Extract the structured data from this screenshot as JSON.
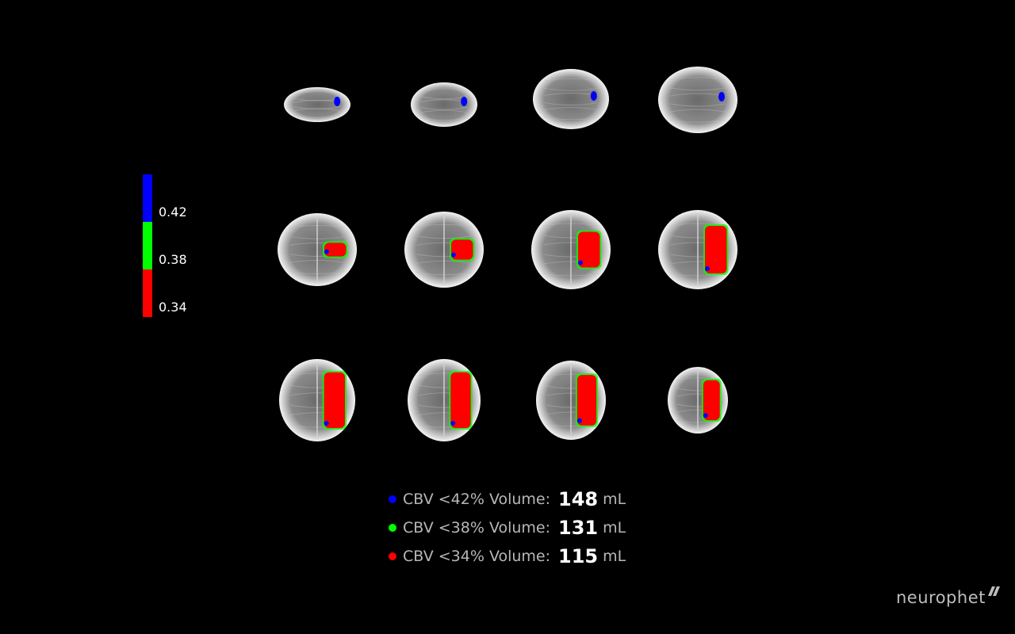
{
  "colorbar": {
    "segments": [
      {
        "color": "#0000ff",
        "label": "0.42"
      },
      {
        "color": "#00ff00",
        "label": "0.38"
      },
      {
        "color": "#ff0000",
        "label": "0.34"
      }
    ]
  },
  "slices": {
    "rows": 3,
    "cols": 4,
    "count": 12,
    "lesion_side": "right"
  },
  "legend": [
    {
      "color": "#0000ff",
      "label": "CBV <42% Volume:",
      "value": "148",
      "unit": "mL"
    },
    {
      "color": "#00ff00",
      "label": "CBV <38% Volume:",
      "value": "131",
      "unit": "mL"
    },
    {
      "color": "#ff0000",
      "label": "CBV <34% Volume:",
      "value": "115",
      "unit": "mL"
    }
  ],
  "brand": {
    "name": "neurophet",
    "icon": "neurophet-logo-icon"
  }
}
